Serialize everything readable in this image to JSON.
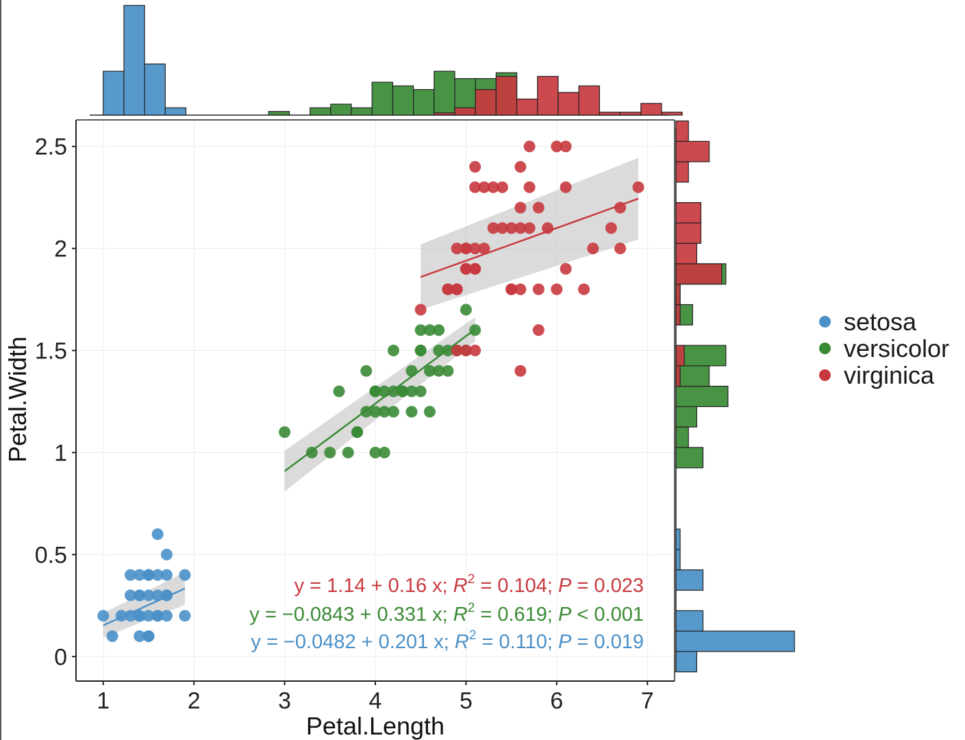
{
  "chart_data": {
    "type": "scatter",
    "xlabel": "Petal.Length",
    "ylabel": "Petal.Width",
    "xlim": [
      0.7,
      7.3
    ],
    "ylim": [
      -0.12,
      2.63
    ],
    "xticks": [
      "1",
      "2",
      "3",
      "4",
      "5",
      "6",
      "7"
    ],
    "yticks": [
      "0",
      "0.5",
      "1",
      "1.5",
      "2",
      "2.5"
    ],
    "grid": true,
    "legend_position": "right",
    "series": [
      {
        "name": "setosa",
        "color": "#4a90c8",
        "x": [
          1.0,
          1.1,
          1.2,
          1.3,
          1.4,
          1.5,
          1.6,
          1.7,
          1.9,
          1.3,
          1.4,
          1.5,
          1.6,
          1.7,
          1.3,
          1.4,
          1.5,
          1.6,
          1.7,
          1.9,
          1.4,
          1.5,
          1.7,
          1.6,
          1.7,
          1.5,
          1.4,
          1.4,
          1.6,
          1.5
        ],
        "y": [
          0.2,
          0.1,
          0.2,
          0.2,
          0.2,
          0.2,
          0.2,
          0.2,
          0.2,
          0.3,
          0.3,
          0.3,
          0.3,
          0.3,
          0.4,
          0.4,
          0.4,
          0.4,
          0.4,
          0.4,
          0.1,
          0.1,
          0.5,
          0.6,
          0.3,
          0.4,
          0.3,
          0.2,
          0.2,
          0.1
        ],
        "fit": {
          "x": [
            1.0,
            1.9
          ],
          "intercept": -0.0482,
          "slope": 0.201
        },
        "ci_halfwidth": [
          0.06,
          0.08
        ],
        "equation": {
          "y_intercept_text": "y = −0.0482 + 0.201 x;",
          "r2_label": "R",
          "r2_sup": "2",
          "r2_value": " = 0.110;",
          "p_label": "P",
          "p_value": " = 0.019"
        }
      },
      {
        "name": "versicolor",
        "color": "#3a8a35",
        "x": [
          3.0,
          3.3,
          3.5,
          3.6,
          3.7,
          3.8,
          3.9,
          3.9,
          4.0,
          4.0,
          4.0,
          4.0,
          4.1,
          4.1,
          4.2,
          4.2,
          4.3,
          4.4,
          4.4,
          4.5,
          4.5,
          4.6,
          4.6,
          4.7,
          4.7,
          4.7,
          4.8,
          4.8,
          4.9,
          5.0,
          5.0,
          5.1,
          4.1,
          4.3,
          4.4,
          4.5,
          3.8,
          4.2,
          4.6,
          4.5
        ],
        "y": [
          1.1,
          1.0,
          1.0,
          1.3,
          1.0,
          1.1,
          1.2,
          1.4,
          1.0,
          1.2,
          1.3,
          1.3,
          1.0,
          1.3,
          1.3,
          1.5,
          1.3,
          1.2,
          1.4,
          1.3,
          1.5,
          1.2,
          1.4,
          1.4,
          1.5,
          1.6,
          1.4,
          1.5,
          1.5,
          1.7,
          1.5,
          1.6,
          1.2,
          1.3,
          1.3,
          1.6,
          1.1,
          1.2,
          1.6,
          1.5
        ],
        "fit": {
          "x": [
            3.0,
            5.1
          ],
          "intercept": -0.0843,
          "slope": 0.331
        },
        "ci_halfwidth": [
          0.1,
          0.06
        ],
        "equation": {
          "y_intercept_text": "y = −0.0843 + 0.331 x;",
          "r2_label": "R",
          "r2_sup": "2",
          "r2_value": " = 0.619;",
          "p_label": "P",
          "p_value": " < 0.001"
        }
      },
      {
        "name": "virginica",
        "color": "#c8393f",
        "x": [
          4.5,
          4.8,
          4.9,
          4.9,
          5.0,
          5.0,
          5.1,
          5.1,
          5.1,
          5.1,
          5.2,
          5.3,
          5.4,
          5.5,
          5.5,
          5.6,
          5.6,
          5.6,
          5.7,
          5.7,
          5.8,
          5.8,
          5.8,
          6.0,
          6.0,
          6.1,
          6.1,
          6.3,
          6.4,
          6.6,
          6.7,
          6.7,
          6.9,
          4.9,
          5.0,
          5.1,
          5.2,
          5.3,
          5.4,
          5.5,
          5.6,
          5.7,
          5.9,
          6.1,
          5.1,
          4.8,
          5.0,
          5.6,
          4.9,
          5.0
        ],
        "y": [
          1.7,
          1.8,
          1.8,
          2.0,
          2.0,
          1.5,
          1.9,
          2.0,
          2.3,
          2.4,
          2.3,
          2.3,
          2.3,
          1.8,
          2.1,
          2.1,
          2.2,
          2.4,
          2.5,
          2.3,
          1.8,
          2.2,
          1.6,
          1.8,
          2.5,
          2.5,
          2.3,
          1.8,
          2.0,
          2.1,
          2.0,
          2.2,
          2.3,
          1.5,
          1.9,
          1.5,
          2.0,
          2.1,
          2.1,
          1.8,
          1.8,
          2.1,
          2.1,
          1.9,
          1.9,
          1.8,
          2.0,
          1.4,
          1.8,
          1.9
        ],
        "fit": {
          "x": [
            4.5,
            6.9
          ],
          "intercept": 1.14,
          "slope": 0.16
        },
        "ci_halfwidth": [
          0.16,
          0.2
        ],
        "equation": {
          "y_intercept_text": "y = 1.14 + 0.16 x;",
          "r2_label": "R",
          "r2_sup": "2",
          "r2_value": " = 0.104;",
          "p_label": "P",
          "p_value": " = 0.023"
        }
      }
    ],
    "marginal_x_histogram": {
      "bin_start": 1.0,
      "bin_width": 0.228,
      "bars": [
        {
          "bin": 0,
          "setosa": 6
        },
        {
          "bin": 1,
          "setosa": 15
        },
        {
          "bin": 2,
          "setosa": 7
        },
        {
          "bin": 3,
          "setosa": 1
        },
        {
          "bin": 8,
          "versicolor": 0.5
        },
        {
          "bin": 10,
          "versicolor": 1
        },
        {
          "bin": 11,
          "versicolor": 1.5
        },
        {
          "bin": 12,
          "versicolor": 1
        },
        {
          "bin": 13,
          "versicolor": 4.5
        },
        {
          "bin": 14,
          "versicolor": 4
        },
        {
          "bin": 15,
          "versicolor": 3.5
        },
        {
          "bin": 16,
          "versicolor": 6,
          "virginica": 0.3
        },
        {
          "bin": 17,
          "versicolor": 5,
          "virginica": 1
        },
        {
          "bin": 18,
          "versicolor": 5,
          "virginica": 3.5
        },
        {
          "bin": 19,
          "versicolor": 5.8,
          "virginica": 5.3
        },
        {
          "bin": 20,
          "virginica": 2.2
        },
        {
          "bin": 21,
          "virginica": 5.3
        },
        {
          "bin": 22,
          "virginica": 3.1
        },
        {
          "bin": 23,
          "virginica": 4
        },
        {
          "bin": 24,
          "virginica": 0.4
        },
        {
          "bin": 25,
          "virginica": 0.4
        },
        {
          "bin": 26,
          "virginica": 1.6
        },
        {
          "bin": 27,
          "virginica": 0.4
        }
      ],
      "ymax": 15
    },
    "marginal_y_histogram": {
      "bars": [
        {
          "y0": -0.075,
          "y1": 0.025,
          "setosa": 1
        },
        {
          "y0": 0.025,
          "y1": 0.125,
          "setosa": 5.7
        },
        {
          "y0": 0.125,
          "y1": 0.225,
          "setosa": 1.3
        },
        {
          "y0": 0.325,
          "y1": 0.425,
          "setosa": 1.3
        },
        {
          "y0": 0.425,
          "y1": 0.525,
          "setosa": 0.2
        },
        {
          "y0": 0.525,
          "y1": 0.625,
          "setosa": 0.2
        },
        {
          "y0": 0.925,
          "y1": 1.025,
          "versicolor": 1.3
        },
        {
          "y0": 1.025,
          "y1": 1.125,
          "versicolor": 0.6
        },
        {
          "y0": 1.125,
          "y1": 1.225,
          "versicolor": 1
        },
        {
          "y0": 1.225,
          "y1": 1.325,
          "versicolor": 2.5
        },
        {
          "y0": 1.325,
          "y1": 1.425,
          "versicolor": 1.6,
          "virginica": 0.2
        },
        {
          "y0": 1.425,
          "y1": 1.525,
          "versicolor": 2.4,
          "virginica": 0.4
        },
        {
          "y0": 1.625,
          "y1": 1.725,
          "versicolor": 0.8,
          "virginica": 0.2
        },
        {
          "y0": 1.725,
          "y1": 1.825,
          "versicolor": 0.2,
          "virginica": 0.2
        },
        {
          "y0": 1.825,
          "y1": 1.925,
          "versicolor": 2.4,
          "virginica": 2.2
        },
        {
          "y0": 1.925,
          "y1": 2.025,
          "virginica": 1
        },
        {
          "y0": 2.025,
          "y1": 2.125,
          "virginica": 1.2
        },
        {
          "y0": 2.125,
          "y1": 2.225,
          "virginica": 1.2
        },
        {
          "y0": 2.325,
          "y1": 2.425,
          "virginica": 0.6
        },
        {
          "y0": 2.425,
          "y1": 2.525,
          "virginica": 1.6
        },
        {
          "y0": 2.525,
          "y1": 2.625,
          "virginica": 0.6
        }
      ],
      "xmax": 5.7
    }
  }
}
